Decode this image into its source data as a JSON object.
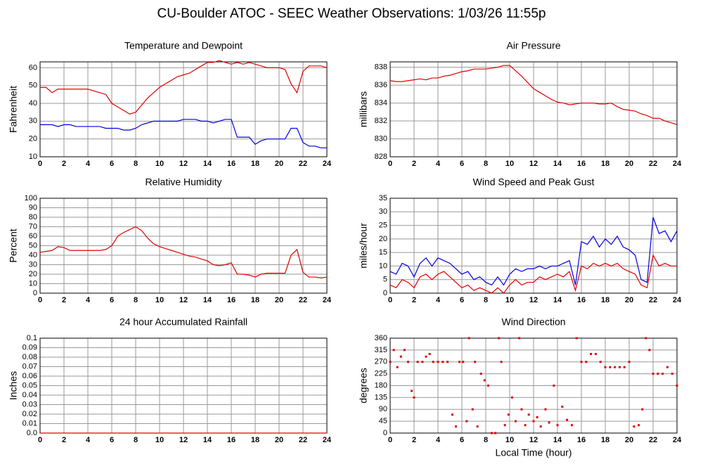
{
  "title": "CU-Boulder ATOC - SEEC Weather Observations: 1/03/26 11:55p",
  "chart_data": [
    {
      "type": "line",
      "title": "Temperature and Dewpoint",
      "ylabel": "Fahrenheit",
      "x": [
        0,
        0.5,
        1,
        1.5,
        2,
        2.5,
        3,
        3.5,
        4,
        4.5,
        5,
        5.5,
        6,
        6.5,
        7,
        7.5,
        8,
        8.5,
        9,
        9.5,
        10,
        10.5,
        11,
        11.5,
        12,
        12.5,
        13,
        13.5,
        14,
        14.5,
        15,
        15.5,
        16,
        16.5,
        17,
        17.5,
        18,
        18.5,
        19,
        19.5,
        20,
        20.5,
        21,
        21.5,
        22,
        22.5,
        23,
        23.5,
        24
      ],
      "series": [
        {
          "color": "#e00000",
          "values": [
            49,
            49,
            46,
            48,
            48,
            48,
            48,
            48,
            48,
            47,
            46,
            45,
            40,
            38,
            36,
            34,
            35,
            39,
            43,
            46,
            49,
            51,
            53,
            55,
            56,
            57,
            59,
            61,
            63,
            63,
            64,
            63,
            62,
            63,
            62,
            63,
            62,
            61,
            60,
            60,
            60,
            59,
            51,
            46,
            58,
            61,
            61,
            61,
            60
          ]
        },
        {
          "color": "#0000e0",
          "values": [
            28,
            28,
            28,
            27,
            28,
            28,
            27,
            27,
            27,
            27,
            27,
            26,
            26,
            26,
            25,
            25,
            26,
            28,
            29,
            30,
            30,
            30,
            30,
            30,
            31,
            31,
            31,
            30,
            30,
            29,
            30,
            31,
            31,
            21,
            21,
            21,
            17,
            19,
            20,
            20,
            20,
            20,
            26,
            26,
            18,
            16,
            16,
            15,
            15
          ]
        }
      ],
      "xlim": [
        0,
        24
      ],
      "xticks": [
        0,
        2,
        4,
        6,
        8,
        10,
        12,
        14,
        16,
        18,
        20,
        22,
        24
      ],
      "ylim": [
        10,
        63.3
      ],
      "yticks": [
        10,
        20,
        30,
        40,
        50,
        60
      ],
      "grid": true
    },
    {
      "type": "line",
      "title": "Air Pressure",
      "ylabel": "millibars",
      "x": [
        0,
        0.5,
        1,
        1.5,
        2,
        2.5,
        3,
        3.5,
        4,
        4.5,
        5,
        5.5,
        6,
        6.5,
        7,
        7.5,
        8,
        8.5,
        9,
        9.5,
        10,
        10.5,
        11,
        11.5,
        12,
        12.5,
        13,
        13.5,
        14,
        14.5,
        15,
        15.5,
        16,
        16.5,
        17,
        17.5,
        18,
        18.5,
        19,
        19.5,
        20,
        20.5,
        21,
        21.5,
        22,
        22.5,
        23,
        23.5,
        24
      ],
      "series": [
        {
          "color": "#e00000",
          "values": [
            836.5,
            836.4,
            836.4,
            836.5,
            836.6,
            836.7,
            836.6,
            836.8,
            836.8,
            837,
            837.1,
            837.3,
            837.5,
            837.6,
            837.8,
            837.8,
            837.8,
            837.9,
            838,
            838.2,
            838.2,
            837.6,
            837,
            836.3,
            835.6,
            835.2,
            834.8,
            834.4,
            834.1,
            834,
            833.8,
            833.9,
            834,
            834,
            834,
            833.9,
            833.9,
            834,
            833.6,
            833.3,
            833.2,
            833.1,
            832.8,
            832.6,
            832.3,
            832.3,
            832,
            831.8,
            831.6
          ]
        }
      ],
      "xlim": [
        0,
        24
      ],
      "xticks": [
        0,
        2,
        4,
        6,
        8,
        10,
        12,
        14,
        16,
        18,
        20,
        22,
        24
      ],
      "ylim": [
        828,
        838.6
      ],
      "yticks": [
        828,
        830,
        832,
        834,
        836,
        838
      ],
      "grid": true
    },
    {
      "type": "line",
      "title": "Relative Humidity",
      "ylabel": "Percent",
      "x": [
        0,
        0.5,
        1,
        1.5,
        2,
        2.5,
        3,
        3.5,
        4,
        4.5,
        5,
        5.5,
        6,
        6.5,
        7,
        7.5,
        8,
        8.5,
        9,
        9.5,
        10,
        10.5,
        11,
        11.5,
        12,
        12.5,
        13,
        13.5,
        14,
        14.5,
        15,
        15.5,
        16,
        16.5,
        17,
        17.5,
        18,
        18.5,
        19,
        19.5,
        20,
        20.5,
        21,
        21.5,
        22,
        22.5,
        23,
        23.5,
        24
      ],
      "series": [
        {
          "color": "#e00000",
          "values": [
            43,
            44,
            45,
            49,
            48,
            45,
            45,
            45,
            45,
            45,
            45,
            46,
            50,
            60,
            64,
            67,
            70,
            66,
            58,
            52,
            49,
            47,
            45,
            43,
            41,
            39,
            38,
            36,
            34,
            30,
            29,
            30,
            32,
            20,
            20,
            19,
            17,
            20,
            21,
            21,
            21,
            21,
            40,
            46,
            22,
            17,
            17,
            16,
            17
          ]
        }
      ],
      "xlim": [
        0,
        24
      ],
      "xticks": [
        0,
        2,
        4,
        6,
        8,
        10,
        12,
        14,
        16,
        18,
        20,
        22,
        24
      ],
      "ylim": [
        0,
        100
      ],
      "yticks": [
        0,
        10,
        20,
        30,
        40,
        50,
        60,
        70,
        80,
        90,
        100
      ],
      "grid": true
    },
    {
      "type": "line",
      "title": "Wind Speed and Peak Gust",
      "ylabel": "miles/hour",
      "x": [
        0,
        0.5,
        1,
        1.5,
        2,
        2.5,
        3,
        3.5,
        4,
        4.5,
        5,
        5.5,
        6,
        6.5,
        7,
        7.5,
        8,
        8.5,
        9,
        9.5,
        10,
        10.5,
        11,
        11.5,
        12,
        12.5,
        13,
        13.5,
        14,
        14.5,
        15,
        15.5,
        16,
        16.5,
        17,
        17.5,
        18,
        18.5,
        19,
        19.5,
        20,
        20.5,
        21,
        21.5,
        22,
        22.5,
        23,
        23.5,
        24
      ],
      "series": [
        {
          "color": "#0000e0",
          "values": [
            8,
            7,
            11,
            10,
            6,
            11,
            13,
            10,
            13,
            12,
            11,
            9,
            7,
            8,
            5,
            6,
            4,
            3,
            6,
            3,
            7,
            9,
            8,
            9,
            9,
            10,
            9,
            10,
            10,
            11,
            12,
            3,
            19,
            18,
            21,
            17,
            20,
            18,
            21,
            17,
            16,
            14,
            5,
            4,
            28,
            22,
            23,
            19,
            23
          ]
        },
        {
          "color": "#e00000",
          "values": [
            3,
            2,
            5,
            4,
            2,
            6,
            7,
            5,
            7,
            8,
            6,
            4,
            2,
            3,
            1,
            2,
            1,
            0,
            2,
            0,
            3,
            5,
            3,
            4,
            4,
            6,
            5,
            6,
            7,
            6,
            8,
            1,
            10,
            9,
            11,
            10,
            11,
            10,
            11,
            9,
            8,
            7,
            3,
            2,
            14,
            10,
            11,
            10,
            10
          ]
        }
      ],
      "xlim": [
        0,
        24
      ],
      "xticks": [
        0,
        2,
        4,
        6,
        8,
        10,
        12,
        14,
        16,
        18,
        20,
        22,
        24
      ],
      "ylim": [
        0,
        35
      ],
      "yticks": [
        0,
        5,
        10,
        15,
        20,
        25,
        30,
        35
      ],
      "grid": true
    },
    {
      "type": "line",
      "title": "24 hour Accumulated Rainfall",
      "ylabel": "Inches",
      "x": [
        0,
        24
      ],
      "series": [
        {
          "color": "#e00000",
          "values": [
            0,
            0
          ]
        }
      ],
      "xlim": [
        0,
        24
      ],
      "xticks": [
        0,
        2,
        4,
        6,
        8,
        10,
        12,
        14,
        16,
        18,
        20,
        22,
        24
      ],
      "ylim": [
        0,
        0.1
      ],
      "yticks": [
        {
          "value": 0,
          "label": "0.0"
        },
        0.01,
        0.02,
        0.03,
        0.04,
        0.05,
        0.06,
        0.07,
        0.08,
        0.09,
        0.1
      ],
      "grid": true
    },
    {
      "type": "scatter",
      "title": "Wind Direction",
      "ylabel": "degrees",
      "xlabel": "Local Time (hour)",
      "x": [
        0,
        0.3,
        0.6,
        0.9,
        1.2,
        1.5,
        1.8,
        2,
        2.3,
        2.7,
        3,
        3.3,
        3.6,
        4,
        4.4,
        4.8,
        5.2,
        5.5,
        5.8,
        6.1,
        6.4,
        6.6,
        6.9,
        7.1,
        7.3,
        7.6,
        7.9,
        8.2,
        8.5,
        8.8,
        9.1,
        9.3,
        9.6,
        9.9,
        10.2,
        10.5,
        10.8,
        11,
        11.3,
        11.6,
        12,
        12.3,
        12.6,
        13,
        13.3,
        13.7,
        14,
        14.4,
        14.8,
        15.2,
        15.6,
        16,
        16.4,
        16.8,
        17.2,
        17.6,
        18,
        18.4,
        18.8,
        19.2,
        19.6,
        20,
        20.4,
        20.8,
        21.1,
        21.4,
        21.7,
        22,
        22.4,
        22.8,
        23.2,
        23.6,
        24
      ],
      "series": [
        {
          "color": "#e00000",
          "values": [
            270,
            315,
            250,
            290,
            315,
            270,
            160,
            135,
            270,
            270,
            290,
            300,
            270,
            270,
            270,
            270,
            70,
            25,
            270,
            270,
            45,
            360,
            90,
            270,
            25,
            225,
            200,
            180,
            0,
            0,
            360,
            270,
            30,
            70,
            135,
            45,
            360,
            90,
            30,
            70,
            45,
            60,
            25,
            90,
            40,
            180,
            30,
            100,
            50,
            30,
            360,
            270,
            270,
            300,
            300,
            270,
            250,
            250,
            250,
            250,
            250,
            270,
            25,
            30,
            90,
            360,
            315,
            225,
            225,
            225,
            250,
            225,
            180
          ]
        }
      ],
      "xlim": [
        0,
        24
      ],
      "xticks": [
        0,
        2,
        4,
        6,
        8,
        10,
        12,
        14,
        16,
        18,
        20,
        22,
        24
      ],
      "ylim": [
        0,
        360
      ],
      "yticks": [
        0,
        45,
        90,
        135,
        180,
        225,
        270,
        315,
        360
      ],
      "grid": true
    }
  ]
}
